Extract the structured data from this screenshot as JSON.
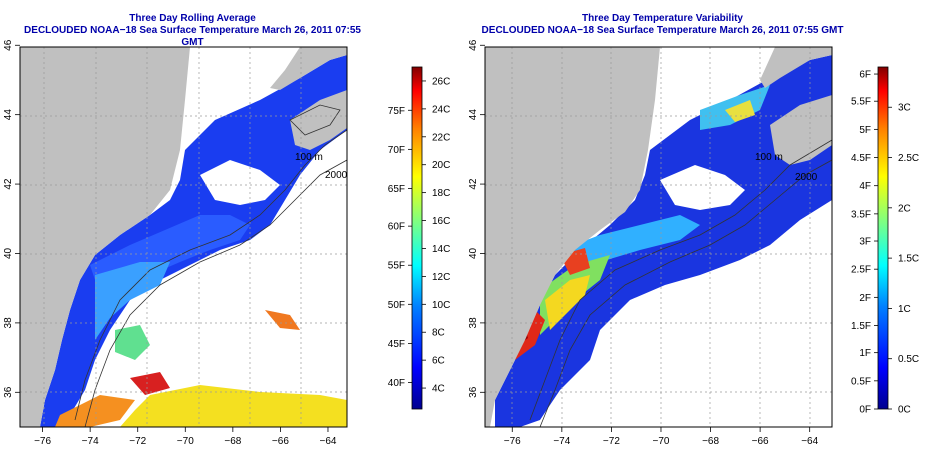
{
  "panels": [
    {
      "id": "left",
      "title_line1": "Three Day Rolling Average",
      "title_line2": "DECLOUDED NOAA−18 Sea Surface Temperature March 26, 2011 07:55 GMT",
      "colorbar": {
        "units_right": "C",
        "right_labels": [
          "26C",
          "24C",
          "22C",
          "20C",
          "18C",
          "16C",
          "14C",
          "12C",
          "10C",
          "8C",
          "6C",
          "4C"
        ],
        "right_values": [
          26,
          24,
          22,
          20,
          18,
          16,
          14,
          12,
          10,
          8,
          6,
          4
        ],
        "left_labels": [
          "75F",
          "70F",
          "65F",
          "60F",
          "55F",
          "50F",
          "45F",
          "40F"
        ],
        "left_values_c": [
          23.9,
          21.1,
          18.3,
          15.6,
          12.8,
          10.0,
          7.2,
          4.4
        ],
        "range_c": [
          2.5,
          27
        ]
      }
    },
    {
      "id": "right",
      "title_line1": "Three Day Temperature Variability",
      "title_line2": "DECLOUDED NOAA−18 Sea Surface Temperature March 26, 2011 07:55 GMT",
      "colorbar": {
        "right_labels": [
          "3C",
          "2.5C",
          "2C",
          "1.5C",
          "1C",
          "0.5C",
          "0C"
        ],
        "right_values": [
          3,
          2.5,
          2,
          1.5,
          1,
          0.5,
          0
        ],
        "left_labels": [
          "6F",
          "5.5F",
          "5F",
          "4.5F",
          "4F",
          "3.5F",
          "3F",
          "2.5F",
          "2F",
          "1.5F",
          "1F",
          "0.5F",
          "0F"
        ],
        "left_values_c": [
          3.33,
          3.06,
          2.78,
          2.5,
          2.22,
          1.94,
          1.67,
          1.39,
          1.11,
          0.83,
          0.56,
          0.28,
          0
        ],
        "range_c": [
          0,
          3.4
        ]
      }
    }
  ],
  "axes": {
    "x_ticks": [
      "−76",
      "−74",
      "−72",
      "−70",
      "−68",
      "−66",
      "−64"
    ],
    "x_values": [
      -76,
      -74,
      -72,
      -70,
      -68,
      -66,
      -64
    ],
    "y_ticks": [
      "36",
      "38",
      "40",
      "42",
      "44",
      "46"
    ],
    "y_values": [
      36,
      38,
      40,
      42,
      44,
      46
    ],
    "lon_range": [
      -77,
      -63
    ],
    "lat_range": [
      35,
      46
    ]
  },
  "contour_labels": [
    "100 m",
    "2000",
    "100 m",
    "2000"
  ],
  "colors": {
    "title": "#0000aa",
    "land": "#c0c0c0",
    "no_data": "#ffffff",
    "grid": "#9a9a9a"
  }
}
